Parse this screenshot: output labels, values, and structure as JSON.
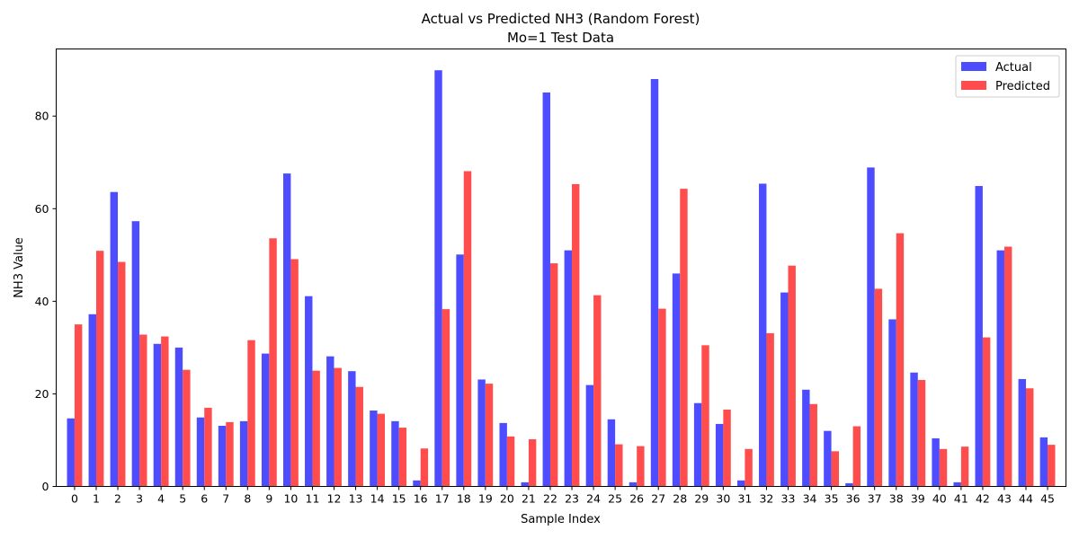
{
  "chart_data": {
    "type": "bar",
    "title": "Actual vs Predicted NH3 (Random Forest)",
    "subtitle": "Mo=1 Test Data",
    "xlabel": "Sample Index",
    "ylabel": "NH3 Value",
    "ylim": [
      0,
      94.5
    ],
    "yticks": [
      0,
      20,
      40,
      60,
      80
    ],
    "legend_position": "top-right",
    "grid": false,
    "categories": [
      "0",
      "1",
      "2",
      "3",
      "4",
      "5",
      "6",
      "7",
      "8",
      "9",
      "10",
      "11",
      "12",
      "13",
      "14",
      "15",
      "16",
      "17",
      "18",
      "19",
      "20",
      "21",
      "22",
      "23",
      "24",
      "25",
      "26",
      "27",
      "28",
      "29",
      "30",
      "31",
      "32",
      "33",
      "34",
      "35",
      "36",
      "37",
      "38",
      "39",
      "40",
      "41",
      "42",
      "43",
      "44",
      "45"
    ],
    "series": [
      {
        "name": "Actual",
        "color": "#4d4dff",
        "values": [
          14.7,
          37.2,
          63.6,
          57.3,
          30.8,
          30.0,
          14.9,
          13.1,
          14.1,
          28.7,
          67.6,
          41.1,
          28.1,
          24.9,
          16.4,
          14.1,
          1.3,
          89.9,
          50.1,
          23.1,
          13.7,
          0.9,
          85.1,
          51.0,
          21.9,
          14.5,
          0.9,
          88.0,
          46.0,
          18.0,
          13.5,
          1.3,
          65.4,
          41.9,
          20.9,
          12.0,
          0.7,
          68.9,
          36.1,
          24.6,
          10.4,
          0.9,
          64.9,
          51.0,
          23.2,
          10.6
        ]
      },
      {
        "name": "Predicted",
        "color": "#ff4d4d",
        "values": [
          35.0,
          50.9,
          48.5,
          32.8,
          32.4,
          25.2,
          17.0,
          13.9,
          31.6,
          53.6,
          49.1,
          25.0,
          25.6,
          21.5,
          15.7,
          12.7,
          8.2,
          38.3,
          68.1,
          22.2,
          10.8,
          10.2,
          48.2,
          65.3,
          41.3,
          9.1,
          8.7,
          38.4,
          64.3,
          30.5,
          16.6,
          8.1,
          33.1,
          47.7,
          17.8,
          7.6,
          13.0,
          42.7,
          54.7,
          23.0,
          8.1,
          8.6,
          32.2,
          51.8,
          21.2,
          9.0
        ]
      }
    ]
  }
}
